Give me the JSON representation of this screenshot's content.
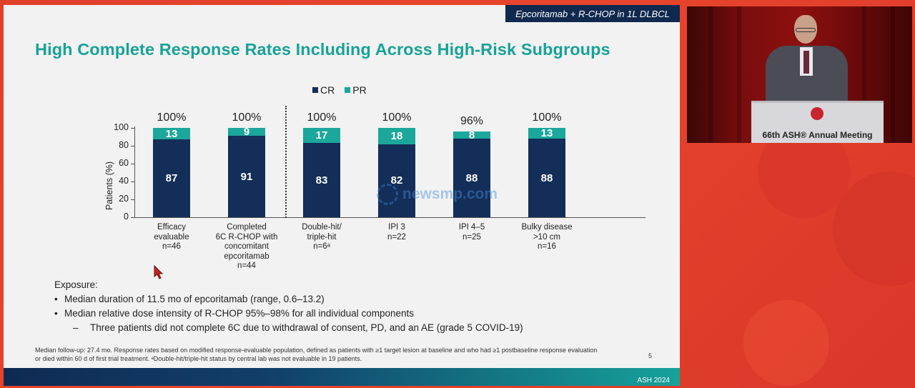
{
  "slide": {
    "tag": "Epcoritamab + R-CHOP in 1L DLBCL",
    "title": "High Complete Response Rates Including Across High-Risk Subgroups",
    "exposure_heading": "Exposure:",
    "bullets": [
      "Median duration of 11.5 mo of epcoritamab (range, 0.6–13.2)",
      "Median relative dose intensity of R-CHOP 95%–98% for all individual components"
    ],
    "sub_bullet": "Three patients did not complete 6C due to withdrawal of consent, PD, and an AE (grade 5 COVID-19)",
    "sub_marker": "–",
    "footnote_line1": "Median follow-up: 27.4 mo. Response rates based on modified response-evaluable population, defined as patients with ≥1 target lesion at baseline and who had ≥1 postbaseline response evaluation",
    "footnote_line2": "or died within 60 d of first trial treatment. ᵃDouble-hit/triple-hit status by central lab was not evaluable in 19 patients.",
    "page_number": "5",
    "footer": "ASH 2024",
    "watermark": "newsmp.com"
  },
  "colors": {
    "cr": "#132e58",
    "pr": "#1ba79b",
    "title": "#17a398"
  },
  "chart_data": {
    "type": "bar",
    "stacked": true,
    "title": "",
    "ylabel": "Patients (%)",
    "xlabel": "",
    "ylim": [
      0,
      100
    ],
    "yticks": [
      0,
      20,
      40,
      60,
      80,
      100
    ],
    "legend": [
      "CR",
      "PR"
    ],
    "legend_position": "top-center",
    "categories": [
      "Efficacy evaluable n=46",
      "Completed 6C R-CHOP with concomitant epcoritamab n=44",
      "Double-hit/ triple-hit n=6ᵃ",
      "IPI 3 n=22",
      "IPI 4–5 n=25",
      "Bulky disease >10 cm n=16"
    ],
    "category_lines": [
      [
        "Efficacy",
        "evaluable",
        "n=46"
      ],
      [
        "Completed",
        "6C R-CHOP with",
        "concomitant",
        "epcoritamab",
        "n=44"
      ],
      [
        "Double-hit/",
        "triple-hit",
        "n=6ᵃ"
      ],
      [
        "IPI 3",
        "n=22"
      ],
      [
        "IPI 4–5",
        "n=25"
      ],
      [
        "Bulky disease",
        ">10 cm",
        "n=16"
      ]
    ],
    "series": [
      {
        "name": "CR",
        "values": [
          87,
          91,
          83,
          82,
          88,
          88
        ]
      },
      {
        "name": "PR",
        "values": [
          13,
          9,
          17,
          18,
          8,
          13
        ]
      }
    ],
    "totals": [
      "100%",
      "100%",
      "100%",
      "100%",
      "96%",
      "100%"
    ],
    "divider_after_index": 1
  },
  "video": {
    "podium_text": "66th ASH® Annual Meeting"
  }
}
